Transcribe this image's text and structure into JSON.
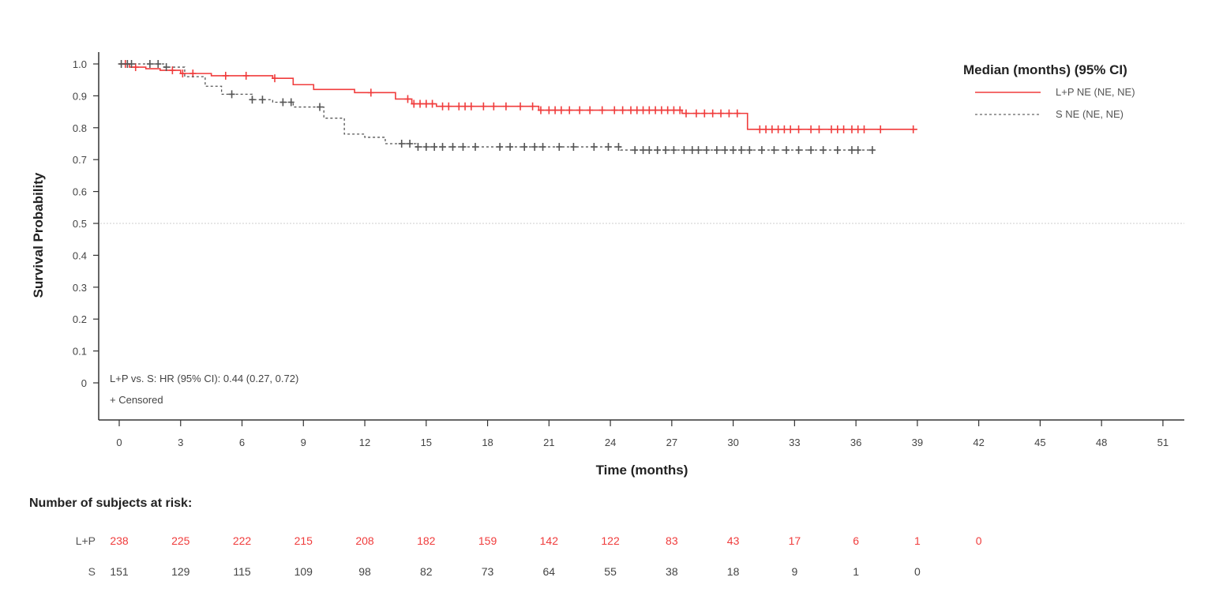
{
  "chart_data": {
    "type": "line",
    "title": "",
    "xlabel": "Time (months)",
    "ylabel": "Survival Probability",
    "xlim": [
      0,
      51
    ],
    "ylim": [
      0,
      1.0
    ],
    "x_ticks": [
      0,
      3,
      6,
      9,
      12,
      15,
      18,
      21,
      24,
      27,
      30,
      33,
      36,
      39,
      42,
      45,
      48,
      51
    ],
    "y_ticks": [
      0,
      0.1,
      0.2,
      0.3,
      0.4,
      0.5,
      0.6,
      0.7,
      0.8,
      0.9,
      1.0
    ],
    "y_tick_labels": [
      "0",
      "0.1",
      "0.2",
      "0.3",
      "0.4",
      "0.5",
      "0.6",
      "0.7",
      "0.8",
      "0.9",
      "1.0"
    ],
    "reference_line_y": 0.5,
    "grid": false,
    "legend": {
      "position": "top-right",
      "title": "Median (months) (95% CI)",
      "entries": [
        "L+P NE (NE, NE)",
        "S NE (NE, NE)"
      ]
    },
    "annotations": {
      "hazard_ratio": "L+P vs. S: HR (95% CI): 0.44 (0.27, 0.72)",
      "censored_note": "+ Censored"
    },
    "series": [
      {
        "name": "L+P",
        "color": "#f03c3c",
        "line_style": "solid",
        "steps": [
          [
            0,
            1.0
          ],
          [
            0.5,
            0.99
          ],
          [
            1.3,
            0.985
          ],
          [
            2.0,
            0.98
          ],
          [
            3.0,
            0.97
          ],
          [
            4.5,
            0.963
          ],
          [
            7.5,
            0.955
          ],
          [
            8.5,
            0.935
          ],
          [
            9.5,
            0.92
          ],
          [
            11.5,
            0.91
          ],
          [
            13.5,
            0.89
          ],
          [
            14.3,
            0.875
          ],
          [
            15.5,
            0.867
          ],
          [
            20.5,
            0.855
          ],
          [
            27.5,
            0.845
          ],
          [
            30.7,
            0.795
          ],
          [
            39,
            0.795
          ]
        ],
        "censored": [
          0.3,
          0.8,
          2.6,
          3.1,
          3.6,
          5.2,
          6.2,
          7.6,
          12.3,
          14.1,
          14.4,
          14.7,
          15.0,
          15.3,
          15.8,
          16.1,
          16.6,
          16.9,
          17.2,
          17.8,
          18.3,
          18.9,
          19.6,
          20.2,
          20.6,
          21.0,
          21.3,
          21.6,
          22.0,
          22.5,
          23.0,
          23.6,
          24.2,
          24.6,
          25.0,
          25.3,
          25.6,
          25.9,
          26.2,
          26.5,
          26.8,
          27.1,
          27.4,
          27.7,
          28.2,
          28.6,
          29.0,
          29.4,
          29.8,
          30.2,
          31.3,
          31.6,
          31.9,
          32.2,
          32.5,
          32.8,
          33.2,
          33.8,
          34.2,
          34.8,
          35.1,
          35.4,
          35.8,
          36.1,
          36.4,
          37.2,
          38.8
        ]
      },
      {
        "name": "S",
        "color": "#555555",
        "line_style": "dashed",
        "steps": [
          [
            0,
            1.0
          ],
          [
            2.2,
            0.99
          ],
          [
            3.2,
            0.96
          ],
          [
            4.2,
            0.93
          ],
          [
            5.0,
            0.905
          ],
          [
            6.5,
            0.888
          ],
          [
            7.5,
            0.88
          ],
          [
            8.5,
            0.865
          ],
          [
            10.0,
            0.83
          ],
          [
            11.0,
            0.78
          ],
          [
            12.0,
            0.77
          ],
          [
            13.0,
            0.75
          ],
          [
            14.5,
            0.74
          ],
          [
            24.5,
            0.73
          ],
          [
            37,
            0.73
          ]
        ],
        "censored": [
          0.1,
          0.4,
          0.6,
          1.5,
          1.9,
          2.3,
          5.5,
          6.5,
          7.0,
          8.0,
          8.4,
          9.8,
          13.8,
          14.2,
          14.6,
          15.0,
          15.4,
          15.8,
          16.3,
          16.8,
          17.4,
          18.6,
          19.1,
          19.8,
          20.3,
          20.7,
          21.5,
          22.2,
          23.2,
          23.9,
          24.4,
          25.2,
          25.6,
          25.9,
          26.3,
          26.7,
          27.1,
          27.6,
          28.0,
          28.3,
          28.7,
          29.2,
          29.6,
          30.0,
          30.4,
          30.8,
          31.4,
          32.0,
          32.6,
          33.2,
          33.8,
          34.4,
          35.1,
          35.8,
          36.1,
          36.8
        ]
      }
    ]
  },
  "risk_table": {
    "title": "Number of subjects at risk:",
    "rows": [
      {
        "label": "L+P",
        "color": "#f03c3c",
        "values": [
          "238",
          "225",
          "222",
          "215",
          "208",
          "182",
          "159",
          "142",
          "122",
          "83",
          "43",
          "17",
          "6",
          "1",
          "0"
        ]
      },
      {
        "label": "S",
        "color": "#444444",
        "values": [
          "151",
          "129",
          "115",
          "109",
          "98",
          "82",
          "73",
          "64",
          "55",
          "38",
          "18",
          "9",
          "1",
          "0"
        ]
      }
    ]
  }
}
